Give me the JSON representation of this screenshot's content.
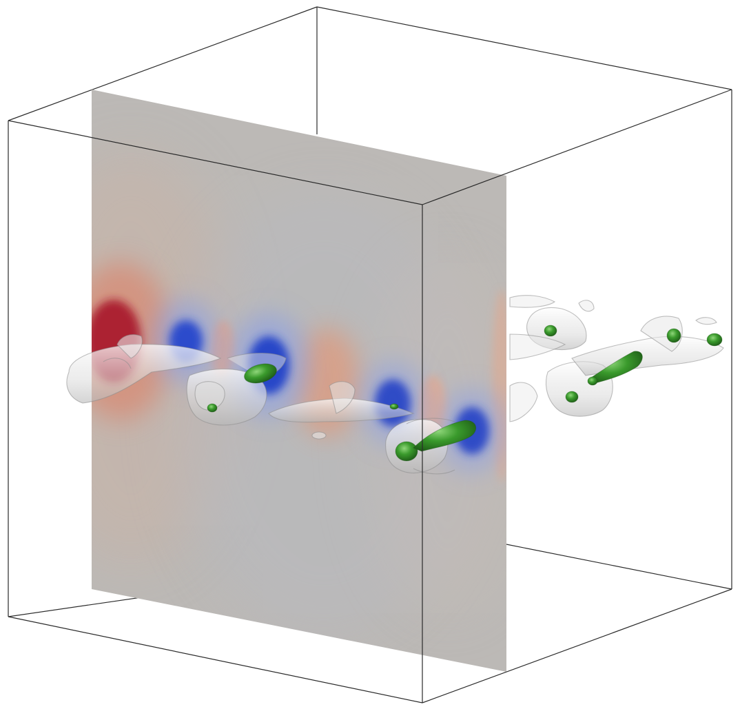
{
  "scene": {
    "colors": {
      "background": "#ffffff",
      "box_edge": "#2a2a2a",
      "slice_base": "#bcb9b6",
      "positive_vorticity": "#b0202a",
      "negative_vorticity": "#1f3cc8",
      "inner_isosurface": "#3a9a2c",
      "outer_isosurface": "#e6e6e6"
    },
    "icons": {
      "bounding_box": "wireframe-cube",
      "slice": "cut-plane",
      "isosurface_outer": "translucent-vortex-tubes",
      "isosurface_inner": "green-vortex-cores"
    }
  }
}
